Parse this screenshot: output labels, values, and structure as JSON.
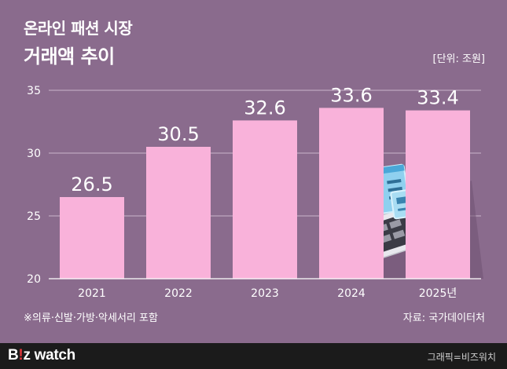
{
  "header": {
    "title_line1": "온라인 패션 시장",
    "title_line2": "거래액 추이",
    "unit": "[단위: 조원]"
  },
  "footnote": "※의류·신발·가방·악세서리 포함",
  "source": "자료: 국가데이터처",
  "footer": {
    "brand_prefix": "B",
    "brand_accent": "!",
    "brand_suffix": "z watch",
    "credit": "그래픽=비즈워치"
  },
  "colors": {
    "background": "#8a6b8d",
    "bar": "#f9b2da",
    "gridline": "#c9b4cb",
    "footer": "#1b1b1b",
    "brand_accent": "#e4373b"
  },
  "chart_data": {
    "type": "bar",
    "categories": [
      "2021",
      "2022",
      "2023",
      "2024",
      "2025년"
    ],
    "values": [
      26.5,
      30.5,
      32.6,
      33.6,
      33.4
    ],
    "value_labels": [
      "26.5",
      "30.5",
      "32.6",
      "33.6",
      "33.4"
    ],
    "yticks": [
      "35",
      "30",
      "25",
      "20"
    ],
    "ylim": [
      20,
      35
    ],
    "grid": true,
    "title": "온라인 패션 시장 거래액 추이",
    "ylabel": "단위: 조원"
  }
}
